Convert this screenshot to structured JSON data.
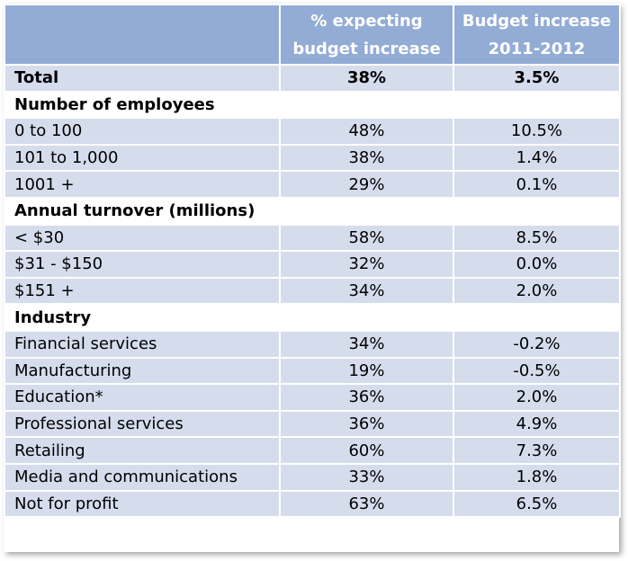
{
  "table": {
    "headers": [
      "",
      "% expecting budget increase",
      "Budget increase 2011-2012"
    ],
    "header_lines": {
      "col2": [
        "% expecting",
        "budget increase"
      ],
      "col3": [
        "Budget increase",
        "2011-2012"
      ]
    },
    "rows": [
      {
        "type": "total",
        "label": "Total",
        "pct": "38%",
        "budget": "3.5%"
      },
      {
        "type": "section",
        "label": "Number of employees"
      },
      {
        "type": "row",
        "label": "0 to 100",
        "pct": "48%",
        "budget": "10.5%"
      },
      {
        "type": "row",
        "label": "101 to 1,000",
        "pct": "38%",
        "budget": "1.4%"
      },
      {
        "type": "row",
        "label": "1001 +",
        "pct": "29%",
        "budget": "0.1%"
      },
      {
        "type": "section",
        "label": "Annual turnover (millions)"
      },
      {
        "type": "row",
        "label": "< $30",
        "pct": "58%",
        "budget": "8.5%"
      },
      {
        "type": "row",
        "label": "$31 - $150",
        "pct": "32%",
        "budget": "0.0%"
      },
      {
        "type": "row",
        "label": "$151 +",
        "pct": "34%",
        "budget": "2.0%"
      },
      {
        "type": "section",
        "label": "Industry"
      },
      {
        "type": "row",
        "label": "Financial services",
        "pct": "34%",
        "budget": "-0.2%"
      },
      {
        "type": "row",
        "label": "Manufacturing",
        "pct": "19%",
        "budget": "-0.5%"
      },
      {
        "type": "row",
        "label": "Education*",
        "pct": "36%",
        "budget": "2.0%"
      },
      {
        "type": "row",
        "label": "Professional services",
        "pct": "36%",
        "budget": "4.9%"
      },
      {
        "type": "row",
        "label": "Retailing",
        "pct": "60%",
        "budget": "7.3%"
      },
      {
        "type": "row",
        "label": "Media and communications",
        "pct": "33%",
        "budget": "1.8%"
      },
      {
        "type": "row",
        "label": "Not for profit",
        "pct": "63%",
        "budget": "6.5%"
      }
    ],
    "colors": {
      "header_bg": "#93acd6",
      "header_text": "#ffffff",
      "row_bg": "#d5dcec",
      "section_bg": "#ffffff"
    }
  }
}
